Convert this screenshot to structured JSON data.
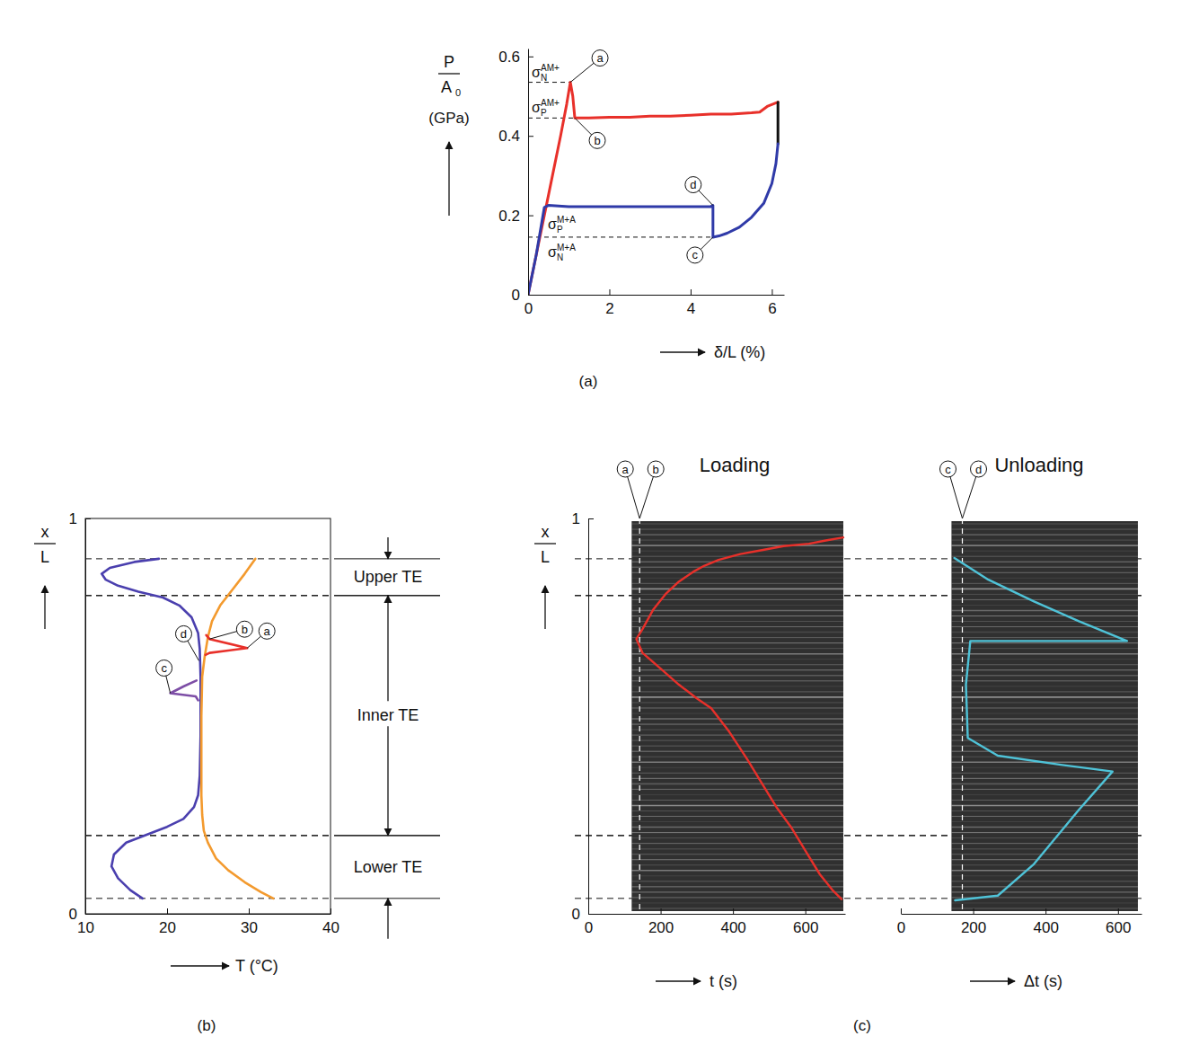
{
  "chart_data": [
    {
      "type": "line",
      "caption": "(a)",
      "ylabel": {
        "numerator": "P",
        "denominator": "A",
        "denominator_sub": "0",
        "unit": "(GPa)"
      },
      "xlabel": "δ/L (%)",
      "xlim": [
        0,
        6.3
      ],
      "ylim": [
        0,
        0.62
      ],
      "xticks": [
        0,
        2,
        4,
        6
      ],
      "yticks": [
        0,
        0.2,
        0.4,
        0.6
      ],
      "series": [
        {
          "color": "#e8302a",
          "x": [
            0,
            0.2,
            0.4,
            0.6,
            0.8,
            0.95,
            1.04,
            1.1,
            1.15,
            1.5,
            2,
            2.5,
            3,
            3.5,
            4,
            4.5,
            5,
            5.5,
            5.7,
            5.9,
            6.15
          ],
          "values": [
            0,
            0.1,
            0.2,
            0.3,
            0.4,
            0.48,
            0.535,
            0.5,
            0.445,
            0.445,
            0.447,
            0.447,
            0.45,
            0.45,
            0.452,
            0.455,
            0.455,
            0.458,
            0.46,
            0.475,
            0.485
          ]
        },
        {
          "color": "#111111",
          "x": [
            6.15,
            6.15
          ],
          "values": [
            0.485,
            0.38
          ]
        },
        {
          "color": "#2f3aa8",
          "x": [
            6.15,
            6.1,
            6.0,
            5.8,
            5.5,
            5.2,
            4.9,
            4.7,
            4.55,
            4.55,
            4.5,
            4.0,
            3.0,
            2.0,
            1.0,
            0.5,
            0.4,
            0.3,
            0.2,
            0.1,
            0
          ],
          "values": [
            0.38,
            0.33,
            0.28,
            0.23,
            0.195,
            0.17,
            0.155,
            0.148,
            0.145,
            0.225,
            0.222,
            0.222,
            0.222,
            0.222,
            0.222,
            0.225,
            0.22,
            0.16,
            0.1,
            0.05,
            0
          ]
        }
      ],
      "stress_levels": [
        {
          "symbol": "σ",
          "sub": "N",
          "sup": "AM+",
          "value": 0.535,
          "x": 1.04,
          "line_style": "dashed"
        },
        {
          "symbol": "σ",
          "sub": "P",
          "sup": "AM+",
          "value": 0.445,
          "x": 1.15,
          "line_style": "dashed"
        },
        {
          "symbol": "σ",
          "sub": "P",
          "sup": "M+A",
          "value": 0.22
        },
        {
          "symbol": "σ",
          "sub": "N",
          "sup": "M+A",
          "value": 0.145,
          "x": 4.55,
          "line_style": "dashed"
        }
      ],
      "points": [
        {
          "label": "a",
          "x": 1.04,
          "y": 0.535
        },
        {
          "label": "b",
          "x": 1.15,
          "y": 0.445
        },
        {
          "label": "c",
          "x": 4.55,
          "y": 0.145
        },
        {
          "label": "d",
          "x": 4.55,
          "y": 0.225
        }
      ]
    },
    {
      "type": "line",
      "caption": "(b)",
      "xlabel": "T (°C)",
      "ylabel": {
        "numerator": "x",
        "denominator": "L"
      },
      "xlim": [
        10,
        40
      ],
      "ylim": [
        0,
        1
      ],
      "xticks": [
        10,
        20,
        30,
        40
      ],
      "yticks": [
        0,
        1
      ],
      "series": [
        {
          "color": "#4a3fae",
          "x": [
            19,
            16,
            13,
            12,
            12.5,
            14,
            16.5,
            19.5,
            21.5,
            23,
            23.8,
            24,
            24.1,
            24.1,
            24,
            23.8,
            23.3,
            22,
            20,
            17.5,
            15,
            13.5,
            13.2,
            14,
            15.5,
            17
          ],
          "values": [
            0.898,
            0.89,
            0.875,
            0.86,
            0.845,
            0.83,
            0.815,
            0.8,
            0.78,
            0.75,
            0.71,
            0.67,
            0.6,
            0.45,
            0.35,
            0.3,
            0.27,
            0.24,
            0.22,
            0.2,
            0.18,
            0.15,
            0.12,
            0.09,
            0.06,
            0.039
          ]
        },
        {
          "color": "#7d4ea6",
          "x": [
            23.6,
            22,
            20.4,
            23.5,
            23.8
          ],
          "values": [
            0.59,
            0.575,
            0.558,
            0.55,
            0.54
          ]
        },
        {
          "color": "#f39a2e",
          "x": [
            30.8,
            29.5,
            28,
            26.5,
            25.5,
            25,
            24.6,
            24.3,
            24.2,
            24.2,
            24.2,
            24.3,
            24.5,
            25,
            26,
            27.5,
            29.5,
            31.5,
            33
          ],
          "values": [
            0.898,
            0.86,
            0.82,
            0.78,
            0.74,
            0.7,
            0.65,
            0.6,
            0.5,
            0.4,
            0.3,
            0.25,
            0.21,
            0.18,
            0.14,
            0.11,
            0.08,
            0.055,
            0.039
          ]
        },
        {
          "color": "#e8302a",
          "x": [
            24.8,
            25.2,
            29.8,
            25.2,
            24.7
          ],
          "values": [
            0.705,
            0.695,
            0.672,
            0.66,
            0.655
          ]
        }
      ],
      "points": [
        {
          "label": "a",
          "x": 29.8,
          "y": 0.672
        },
        {
          "label": "b",
          "x": 25.2,
          "y": 0.695
        },
        {
          "label": "c",
          "x": 20.4,
          "y": 0.558
        },
        {
          "label": "d",
          "x": 23.9,
          "y": 0.64
        }
      ],
      "regions": [
        {
          "label": "Upper TE",
          "range": [
            0.805,
            0.898
          ]
        },
        {
          "label": "Inner TE",
          "range": [
            0.198,
            0.805
          ]
        },
        {
          "label": "Lower TE",
          "range": [
            0.039,
            0.198
          ]
        }
      ]
    },
    {
      "type": "image",
      "caption": "(c)",
      "ylabel": {
        "numerator": "x",
        "denominator": "L"
      },
      "ylim": [
        0,
        1
      ],
      "yticks": [
        0,
        1
      ],
      "panels": [
        {
          "title": "Loading",
          "xlabel": "t (s)",
          "xlim": [
            0,
            710
          ],
          "xticks": [
            0,
            200,
            400,
            600
          ],
          "image_extent": [
            120,
            705
          ],
          "marker": {
            "labels": [
              "a",
              "b"
            ],
            "value": 142
          },
          "series": [
            {
              "color": "#e8302a",
              "x": [
                705,
                660,
                610,
                540,
                480,
                420,
                360,
                320,
                290,
                250,
                215,
                180,
                150,
                133,
                150,
                200,
                250,
                300,
                340,
                390,
                440,
                480,
                520,
                560,
                600,
                640,
                675,
                700
              ],
              "values": [
                0.952,
                0.945,
                0.936,
                0.93,
                0.92,
                0.91,
                0.895,
                0.88,
                0.865,
                0.84,
                0.81,
                0.77,
                0.72,
                0.695,
                0.66,
                0.62,
                0.58,
                0.545,
                0.52,
                0.46,
                0.39,
                0.33,
                0.27,
                0.22,
                0.16,
                0.1,
                0.06,
                0.037
              ]
            }
          ]
        },
        {
          "title": "Unloading",
          "xlabel": "Δt (s)",
          "xlim": [
            0,
            665
          ],
          "xticks": [
            0,
            200,
            400,
            600
          ],
          "image_extent": [
            140,
            655
          ],
          "marker": {
            "labels": [
              "c",
              "d"
            ],
            "value": 170
          },
          "series": [
            {
              "color": "#4fc3d8",
              "x": [
                148,
                242,
                368,
                492,
                625,
                192,
                180,
                185,
                268,
                442,
                585,
                492,
                368,
                268,
                150
              ],
              "values": [
                0.9,
                0.845,
                0.79,
                0.74,
                0.69,
                0.69,
                0.58,
                0.445,
                0.4,
                0.377,
                0.36,
                0.263,
                0.126,
                0.046,
                0.034
              ]
            }
          ]
        }
      ]
    }
  ]
}
